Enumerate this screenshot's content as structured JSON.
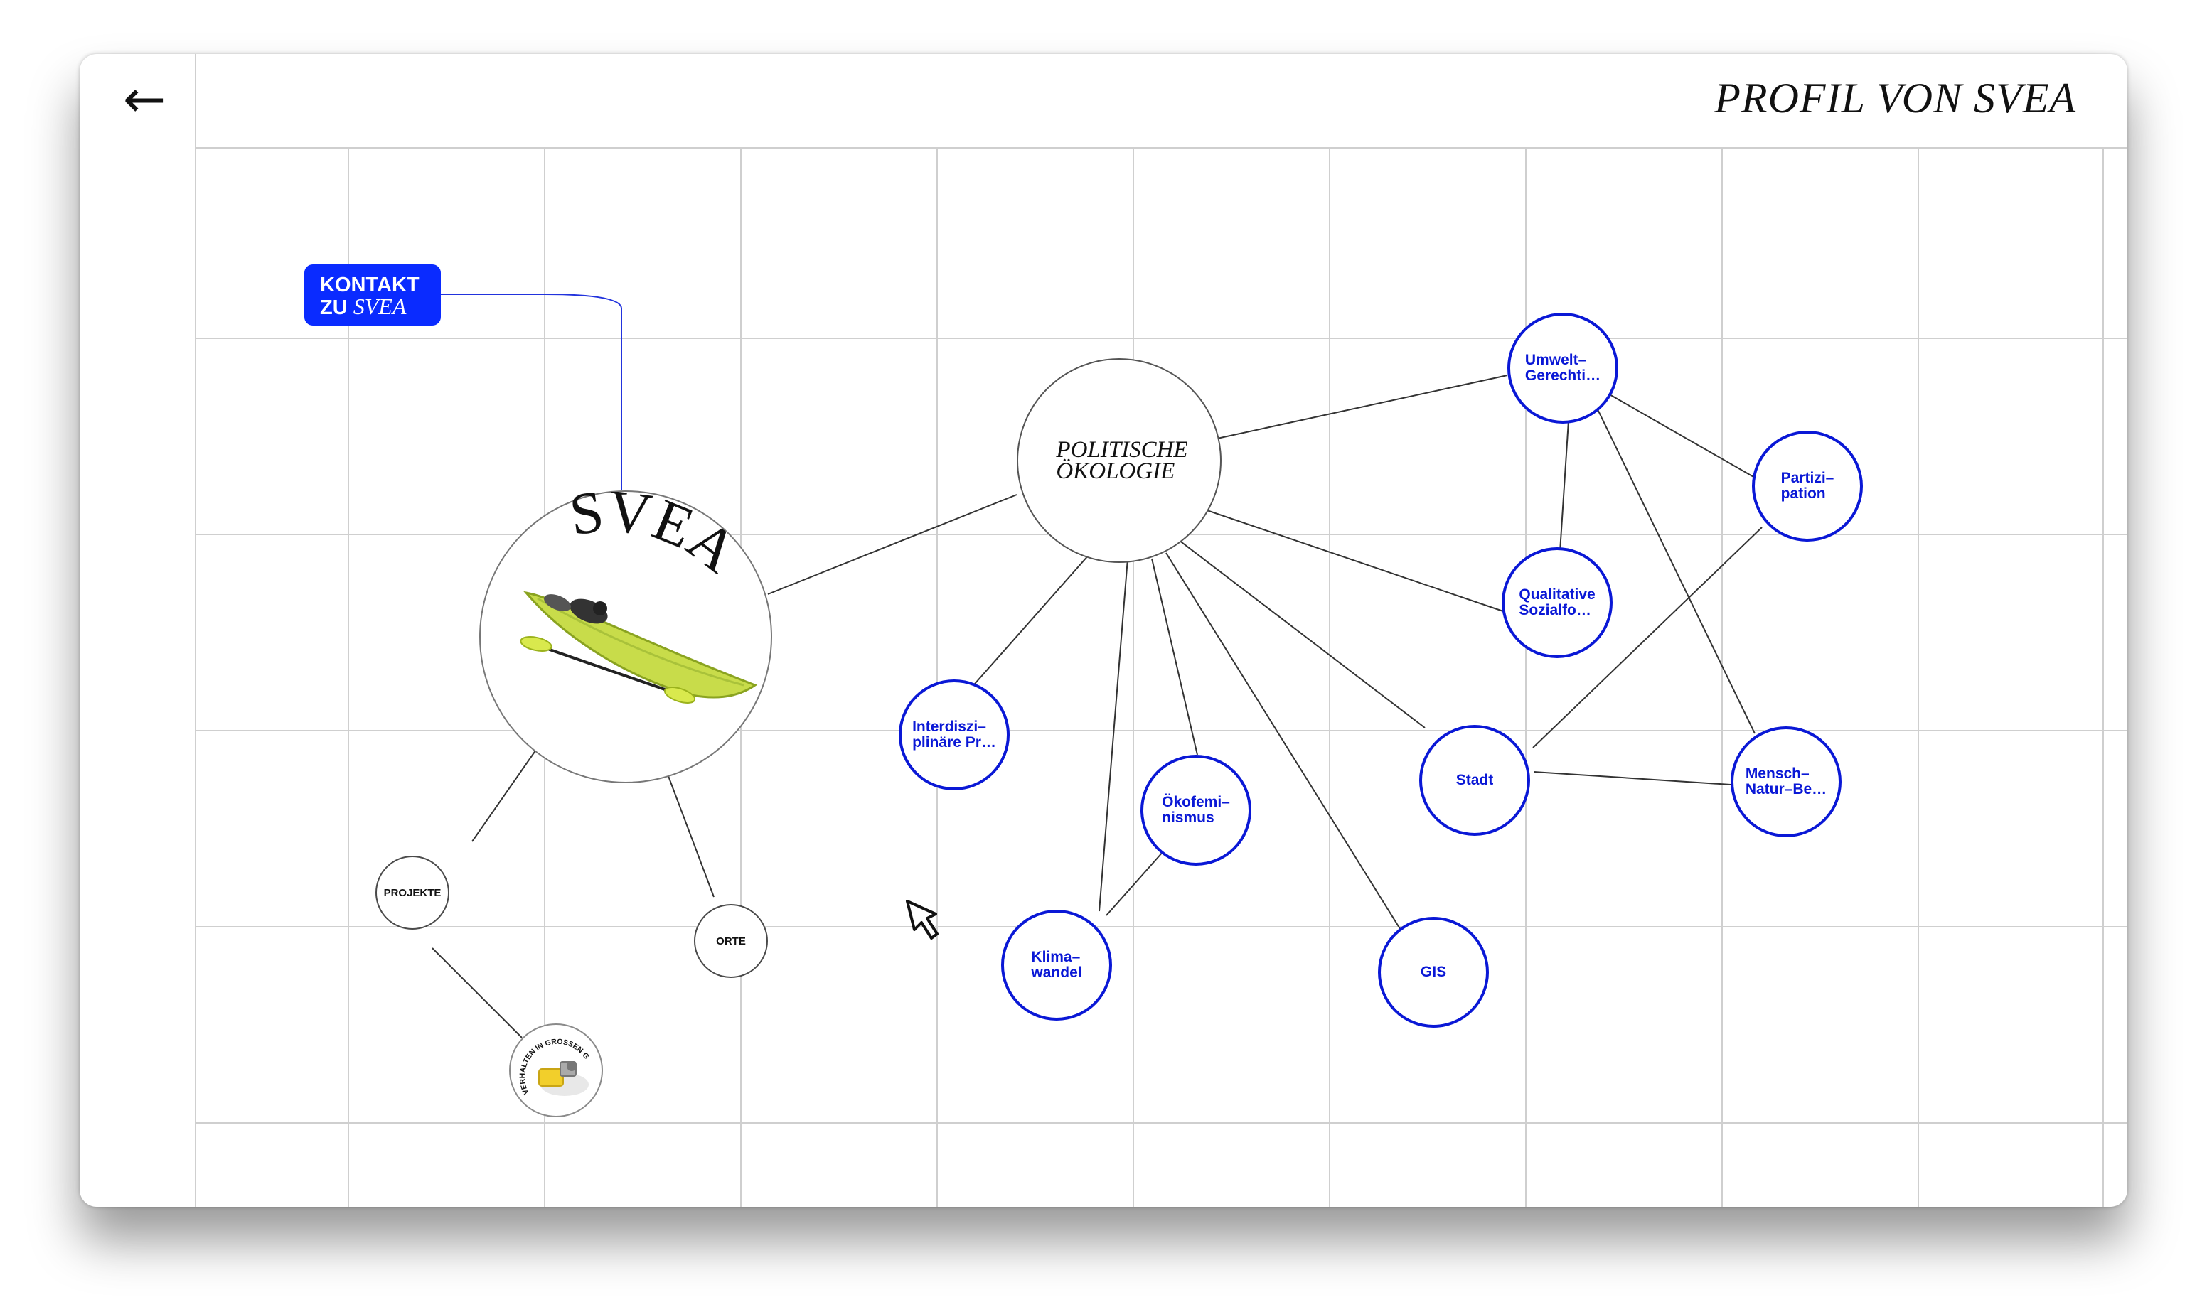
{
  "page_title": "PROFIL VON SVEA",
  "back_label": "←",
  "contact": {
    "line1": "KONTAKT",
    "line2_prefix": "ZU ",
    "line2_name": "SVEA"
  },
  "profile": {
    "name": "SVEA",
    "image": "kayak-with-paddle"
  },
  "hub": {
    "label_line1": "POLITISCHE",
    "label_line2": "ÖKOLOGIE"
  },
  "side_nodes": {
    "projekte": "PROJEKTE",
    "orte": "ORTE"
  },
  "project_thumb": {
    "caption": "VERHALTEN IN GROSSEN GRUPPEN"
  },
  "topics": [
    {
      "id": "umwelt",
      "line1": "Umwelt–",
      "line2": "Gerechti…"
    },
    {
      "id": "partizipation",
      "line1": "Partizi–",
      "line2": "pation"
    },
    {
      "id": "qualitative",
      "line1": "Qualitative",
      "line2": "Sozialfo…"
    },
    {
      "id": "interdisziplinaere",
      "line1": "Interdiszi–",
      "line2": "plinäre Pr…"
    },
    {
      "id": "stadt",
      "line1": "Stadt",
      "line2": ""
    },
    {
      "id": "mensch",
      "line1": "Mensch–",
      "line2": "Natur–Be…"
    },
    {
      "id": "oekofeminismus",
      "line1": "Ökofemi–",
      "line2": "nismus"
    },
    {
      "id": "klimawandel",
      "line1": "Klima–",
      "line2": "wandel"
    },
    {
      "id": "gis",
      "line1": "GIS",
      "line2": ""
    }
  ],
  "colors": {
    "accent": "#0a2bff",
    "node_text": "#0a18d6",
    "grid": "#cfcfcf"
  }
}
